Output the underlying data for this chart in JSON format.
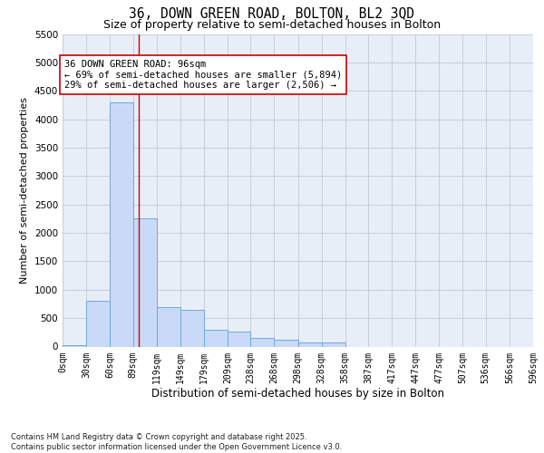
{
  "title_line1": "36, DOWN GREEN ROAD, BOLTON, BL2 3QD",
  "title_line2": "Size of property relative to semi-detached houses in Bolton",
  "xlabel": "Distribution of semi-detached houses by size in Bolton",
  "ylabel": "Number of semi-detached properties",
  "footnote": "Contains HM Land Registry data © Crown copyright and database right 2025.\nContains public sector information licensed under the Open Government Licence v3.0.",
  "bin_edges": [
    0,
    30,
    60,
    89,
    119,
    149,
    179,
    209,
    238,
    268,
    298,
    328,
    358,
    387,
    417,
    447,
    477,
    507,
    536,
    566,
    596
  ],
  "bar_heights": [
    30,
    800,
    4300,
    2250,
    700,
    650,
    300,
    270,
    150,
    120,
    75,
    75,
    0,
    0,
    0,
    0,
    0,
    0,
    0,
    0
  ],
  "bar_color": "#c9daf8",
  "bar_edge_color": "#6fa8dc",
  "tick_labels": [
    "0sqm",
    "30sqm",
    "60sqm",
    "89sqm",
    "119sqm",
    "149sqm",
    "179sqm",
    "209sqm",
    "238sqm",
    "268sqm",
    "298sqm",
    "328sqm",
    "358sqm",
    "387sqm",
    "417sqm",
    "447sqm",
    "477sqm",
    "507sqm",
    "536sqm",
    "566sqm",
    "596sqm"
  ],
  "property_size": 96,
  "annotation_title": "36 DOWN GREEN ROAD: 96sqm",
  "annotation_line1": "← 69% of semi-detached houses are smaller (5,894)",
  "annotation_line2": "29% of semi-detached houses are larger (2,506) →",
  "vline_color": "#cc0000",
  "annotation_box_color": "#ffffff",
  "annotation_box_edge": "#cc0000",
  "ylim_max": 5500,
  "yticks": [
    0,
    500,
    1000,
    1500,
    2000,
    2500,
    3000,
    3500,
    4000,
    4500,
    5000,
    5500
  ],
  "bg_color": "#ffffff",
  "plot_bg_color": "#e8eef8",
  "grid_color": "#c0c8d8"
}
